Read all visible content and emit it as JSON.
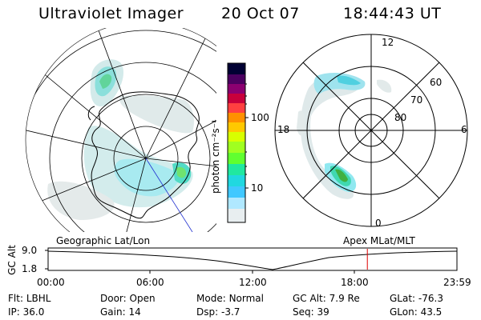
{
  "header": {
    "title": "Ultraviolet Imager",
    "date": "20 Oct 07",
    "time": "18:44:43 UT"
  },
  "colorbar": {
    "unit_label": "photon cm⁻²s⁻¹",
    "ticks": [
      "100",
      "10"
    ],
    "scale": "log",
    "colors": [
      "#000033",
      "#4b0060",
      "#8b0070",
      "#c8003c",
      "#ff4040",
      "#ff9000",
      "#ffc800",
      "#d8ff00",
      "#60ff30",
      "#20e8a0",
      "#40c8ff",
      "#b0e8ff",
      "#f0f0f0"
    ]
  },
  "polar_plot": {
    "mlt_labels": {
      "top": "12",
      "left": "18",
      "right": "6",
      "bottom": "0"
    },
    "mlat_labels": [
      "60",
      "70",
      "80"
    ]
  },
  "panels": {
    "left_caption": "Geographic Lat/Lon",
    "right_caption": "Apex MLat/MLT"
  },
  "altitude_plot": {
    "ylabel": "GC Alt",
    "yticks": [
      "9.0",
      "1.8"
    ],
    "xticks": [
      "00:00",
      "06:00",
      "12:00",
      "18:00",
      "23:59"
    ],
    "current_time_hours": 18.74,
    "marker_color": "#e00000"
  },
  "info": [
    {
      "label": "Flt:",
      "value": "LBHL"
    },
    {
      "label": "Door:",
      "value": "Open"
    },
    {
      "label": "Mode:",
      "value": "Normal"
    },
    {
      "label": "GC Alt:",
      "value": "7.9 Re"
    },
    {
      "label": "GLat:",
      "value": "-76.3"
    },
    {
      "label": "IP:",
      "value": "36.0"
    },
    {
      "label": "Gain:",
      "value": "14"
    },
    {
      "label": "Dsp:",
      "value": "-3.7"
    },
    {
      "label": "Seq:",
      "value": "39"
    },
    {
      "label": "GLon:",
      "value": "43.5"
    }
  ]
}
